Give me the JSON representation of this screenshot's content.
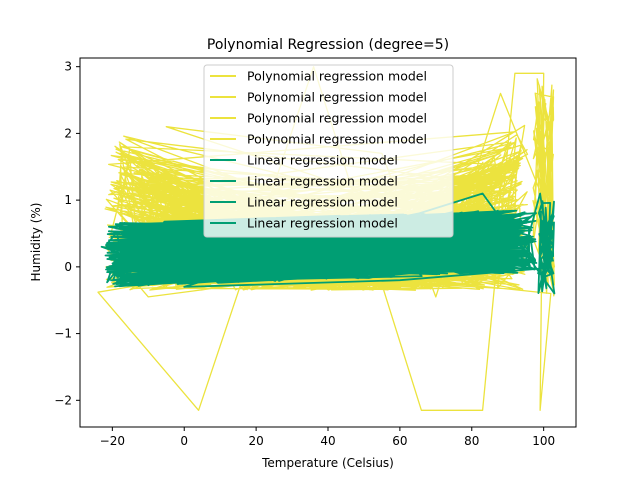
{
  "chart_data": {
    "type": "line",
    "title": "Polynomial Regression (degree=5)",
    "xlabel": "Temperature (Celsius)",
    "ylabel": "Humidity (%)",
    "xlim": [
      -29,
      109
    ],
    "ylim": [
      -2.4,
      3.13
    ],
    "xticks": [
      -20,
      0,
      20,
      40,
      60,
      80,
      100
    ],
    "yticks": [
      -2,
      -1,
      0,
      1,
      2,
      3
    ],
    "xtick_labels": [
      "−20",
      "0",
      "20",
      "40",
      "60",
      "80",
      "100"
    ],
    "ytick_labels": [
      "−2",
      "−1",
      "0",
      "1",
      "2",
      "3"
    ],
    "grid": false,
    "legend_position": "upper-center",
    "series": [
      {
        "name": "Polynomial regression model",
        "color": "#ece33e",
        "points": [
          [
            -24,
            -0.38
          ],
          [
            4,
            -2.15
          ],
          [
            36,
            3.0
          ],
          [
            66,
            -2.15
          ],
          [
            83,
            -2.15
          ],
          [
            92,
            2.9
          ],
          [
            100,
            2.9
          ],
          [
            99,
            -2.15
          ],
          [
            102,
            -0.4
          ],
          [
            -22,
            0.3
          ],
          [
            -10,
            -0.45
          ],
          [
            96,
            0.3
          ],
          [
            -5,
            2.1
          ],
          [
            55,
            1.7
          ],
          [
            70,
            -0.45
          ],
          [
            88,
            2.6
          ],
          [
            100,
            1.0
          ],
          [
            103,
            0.0
          ]
        ]
      },
      {
        "name": "Polynomial regression model",
        "color": "#ece33e",
        "points": []
      },
      {
        "name": "Polynomial regression model",
        "color": "#ece33e",
        "points": []
      },
      {
        "name": "Polynomial regression model",
        "color": "#ece33e",
        "points": []
      },
      {
        "name": "Linear regression model",
        "color": "#009e73",
        "points": [
          [
            -23,
            0.3
          ],
          [
            10,
            0.0
          ],
          [
            40,
            0.3
          ],
          [
            70,
            0.1
          ],
          [
            95,
            0.3
          ],
          [
            99,
            1.1
          ],
          [
            103,
            -0.4
          ],
          [
            83,
            1.1
          ],
          [
            0,
            -0.3
          ],
          [
            60,
            -0.2
          ]
        ]
      },
      {
        "name": "Linear regression model",
        "color": "#009e73",
        "points": []
      },
      {
        "name": "Linear regression model",
        "color": "#009e73",
        "points": []
      },
      {
        "name": "Linear regression model",
        "color": "#009e73",
        "points": []
      }
    ]
  }
}
